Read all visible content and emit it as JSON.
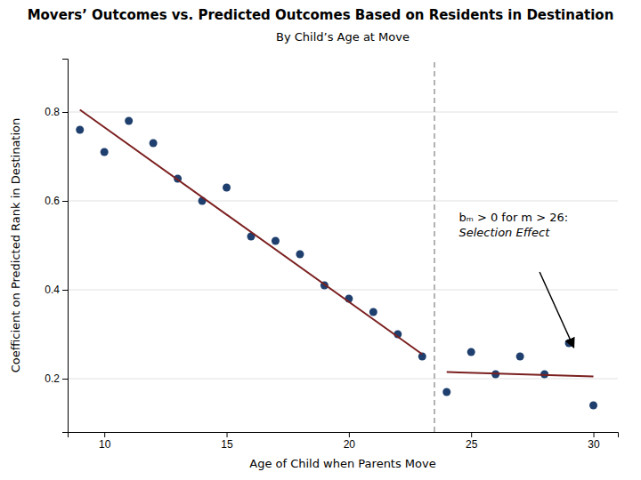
{
  "chart_data": {
    "type": "scatter",
    "title": "Movers’ Outcomes vs. Predicted Outcomes Based on Residents in Destination",
    "subtitle": "By Child’s Age at Move",
    "xlabel": "Age of Child when Parents Move",
    "ylabel": "Coefficient on Predicted Rank in Destination",
    "series": [
      {
        "type": "scatter",
        "color": "#1f3f6e",
        "x": [
          9,
          10,
          11,
          12,
          13,
          14,
          15,
          16,
          17,
          18,
          19,
          20,
          21,
          22,
          23,
          24,
          25,
          26,
          27,
          28,
          29,
          30
        ],
        "values": [
          0.76,
          0.71,
          0.78,
          0.73,
          0.65,
          0.6,
          0.63,
          0.52,
          0.51,
          0.48,
          0.41,
          0.38,
          0.35,
          0.3,
          0.25,
          0.17,
          0.26,
          0.21,
          0.25,
          0.21,
          0.28,
          0.14
        ]
      },
      {
        "type": "line",
        "color": "#7b2020",
        "x": [
          9,
          23
        ],
        "values": [
          0.805,
          0.255
        ]
      },
      {
        "type": "line",
        "color": "#7b2020",
        "x": [
          24,
          30
        ],
        "values": [
          0.215,
          0.205
        ]
      }
    ],
    "vlines": [
      {
        "x": 23.5,
        "color": "#aaaaaa",
        "line_style": "dashed"
      }
    ],
    "annotations": [
      {
        "lines": [
          "bₘ > 0 for m > 26:",
          "Selection Effect"
        ],
        "x": 24.5,
        "y": 0.58,
        "arrow": {
          "from": [
            27.8,
            0.44
          ],
          "to": [
            29.2,
            0.27
          ]
        }
      }
    ],
    "xlim": [
      8.5,
      31
    ],
    "ylim": [
      0.08,
      0.92
    ],
    "xticks": [
      10,
      15,
      20,
      25,
      30
    ],
    "yticks": [
      0.2,
      0.4,
      0.6,
      0.8
    ],
    "grid": "y"
  }
}
